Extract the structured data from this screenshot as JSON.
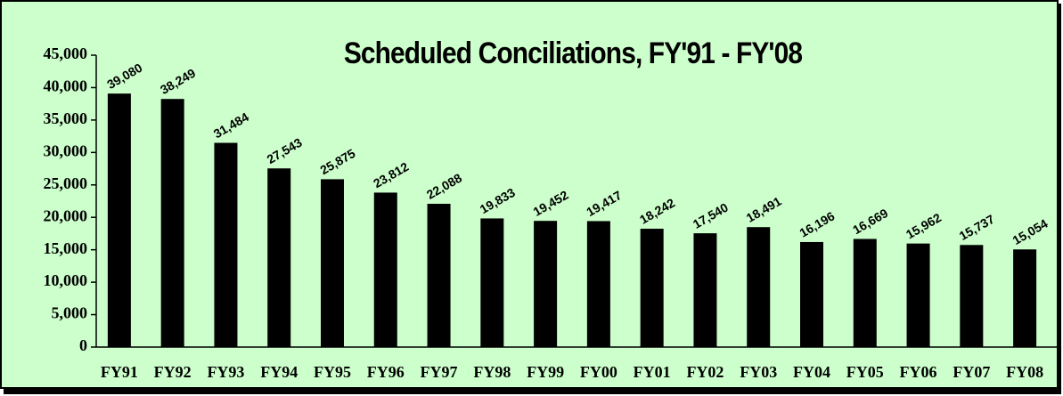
{
  "chart_data": {
    "type": "bar",
    "title": "Scheduled Conciliations, FY'91 - FY'08",
    "categories": [
      "FY91",
      "FY92",
      "FY93",
      "FY94",
      "FY95",
      "FY96",
      "FY97",
      "FY98",
      "FY99",
      "FY00",
      "FY01",
      "FY02",
      "FY03",
      "FY04",
      "FY05",
      "FY06",
      "FY07",
      "FY08"
    ],
    "values": [
      39080,
      38249,
      31484,
      27543,
      25875,
      23812,
      22088,
      19833,
      19452,
      19417,
      18242,
      17540,
      18491,
      16196,
      16669,
      15962,
      15737,
      15054
    ],
    "value_labels": [
      "39,080",
      "38,249",
      "31,484",
      "27,543",
      "25,875",
      "23,812",
      "22,088",
      "19,833",
      "19,452",
      "19,417",
      "18,242",
      "17,540",
      "18,491",
      "16,196",
      "16,669",
      "15,962",
      "15,737",
      "15,054"
    ],
    "color": "#000000",
    "background": "#ccffcc",
    "ylim": [
      0,
      45000
    ],
    "yticks": [
      0,
      {
        "value": 5000,
        "label": "5,000"
      },
      {
        "value": 10000,
        "label": "10,000"
      },
      {
        "value": 15000,
        "label": "15,000"
      },
      {
        "value": 20000,
        "label": "20,000"
      },
      {
        "value": 25000,
        "label": "25,000"
      },
      {
        "value": 30000,
        "label": "30,000"
      },
      {
        "value": 35000,
        "label": "35,000"
      },
      {
        "value": 40000,
        "label": "40,000"
      },
      {
        "value": 45000,
        "label": "45,000"
      }
    ],
    "grid": false
  }
}
